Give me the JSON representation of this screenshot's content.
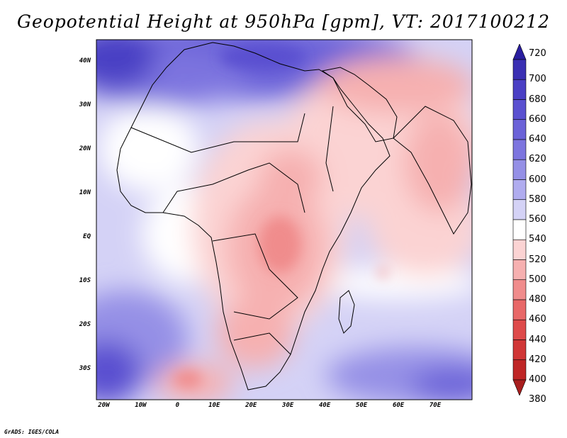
{
  "title": "Geopotential Height at 950hPa [gpm], VT: 2017100212",
  "credit": "GrADS: IGES/COLA",
  "lat_labels": [
    "40N",
    "30N",
    "20N",
    "10N",
    "EQ",
    "10S",
    "20S",
    "30S"
  ],
  "lat_values": [
    40,
    30,
    20,
    10,
    0,
    -10,
    -20,
    -30
  ],
  "lon_labels": [
    "20W",
    "10W",
    "0",
    "10E",
    "20E",
    "30E",
    "40E",
    "50E",
    "60E",
    "70E"
  ],
  "lon_values": [
    -20,
    -10,
    0,
    10,
    20,
    30,
    40,
    50,
    60,
    70
  ],
  "domain": {
    "lon_min": -22,
    "lon_max": 80,
    "lat_min": -37,
    "lat_max": 45
  },
  "colorbar": {
    "levels": [
      "720",
      "700",
      "680",
      "660",
      "640",
      "620",
      "600",
      "580",
      "560",
      "540",
      "520",
      "500",
      "480",
      "460",
      "440",
      "420",
      "400",
      "380"
    ],
    "colors": [
      "#2a1ea0",
      "#3a2fb3",
      "#4a3fc4",
      "#5a50d0",
      "#6b62d8",
      "#7d75df",
      "#9590e6",
      "#b0acef",
      "#d4d2f6",
      "#ffffff",
      "#fbd3d3",
      "#f6b0b0",
      "#f08c8c",
      "#e86868",
      "#de4a4a",
      "#d03636",
      "#bf2626",
      "#a81e1e"
    ]
  }
}
